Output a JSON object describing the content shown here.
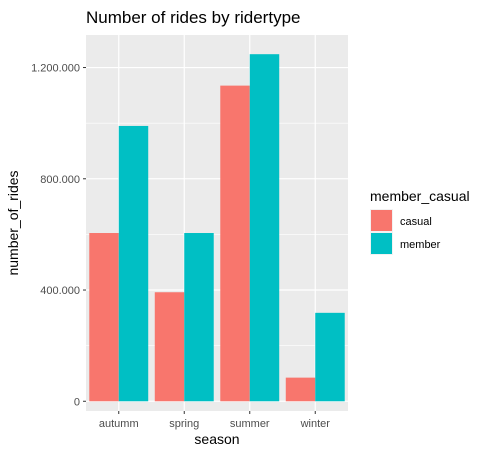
{
  "chart_data": {
    "type": "bar",
    "title": "Number of rides by ridertype",
    "xlabel": "season",
    "ylabel": "number_of_rides",
    "categories": [
      "autumm",
      "spring",
      "summer",
      "winter"
    ],
    "series": [
      {
        "name": "casual",
        "color": "#F8766D",
        "values": [
          605000,
          392000,
          1135000,
          85000
        ]
      },
      {
        "name": "member",
        "color": "#00BFC4",
        "values": [
          990000,
          605000,
          1248000,
          318000
        ]
      }
    ],
    "ylim": [
      -35000,
      1317000
    ],
    "yticks": [
      0,
      400000,
      800000,
      1200000
    ],
    "ytick_labels": [
      "0",
      "400.000",
      "800.000",
      "1.200.000"
    ],
    "legend": {
      "title": "member_casual",
      "position": "right"
    },
    "grid": true,
    "panel_background": "#EBEBEB"
  }
}
